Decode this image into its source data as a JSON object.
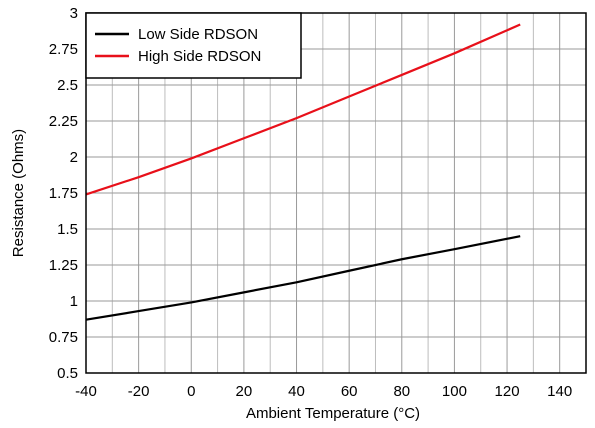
{
  "chart_data": {
    "type": "line",
    "xlabel": "Ambient Temperature (°C)",
    "ylabel": "Resistance (Ohms)",
    "xlim": [
      -40,
      150
    ],
    "ylim": [
      0.5,
      3
    ],
    "x_ticks": [
      -40,
      -20,
      0,
      20,
      40,
      60,
      80,
      100,
      120,
      140
    ],
    "x_tick_labels": [
      "-40",
      "-20",
      "0",
      "20",
      "40",
      "60",
      "80",
      "100",
      "120",
      "140"
    ],
    "x_minor_grid_step": 10,
    "y_ticks": [
      0.5,
      0.75,
      1,
      1.25,
      1.5,
      1.75,
      2,
      2.25,
      2.5,
      2.75,
      3
    ],
    "y_tick_labels": [
      "0.5",
      "0.75",
      "1",
      "1.25",
      "1.5",
      "1.75",
      "2",
      "2.25",
      "2.5",
      "2.75",
      "3"
    ],
    "grid": true,
    "legend_position": "top-left",
    "series": [
      {
        "name": "Low Side RDSON",
        "color": "#000000",
        "x": [
          -40,
          -20,
          0,
          20,
          40,
          60,
          80,
          100,
          125
        ],
        "y": [
          0.87,
          0.93,
          0.99,
          1.06,
          1.13,
          1.21,
          1.29,
          1.36,
          1.45
        ]
      },
      {
        "name": "High Side RDSON",
        "color": "#e8101a",
        "x": [
          -40,
          -20,
          0,
          20,
          40,
          60,
          80,
          100,
          125
        ],
        "y": [
          1.74,
          1.86,
          1.99,
          2.13,
          2.27,
          2.42,
          2.57,
          2.72,
          2.92
        ]
      }
    ]
  }
}
